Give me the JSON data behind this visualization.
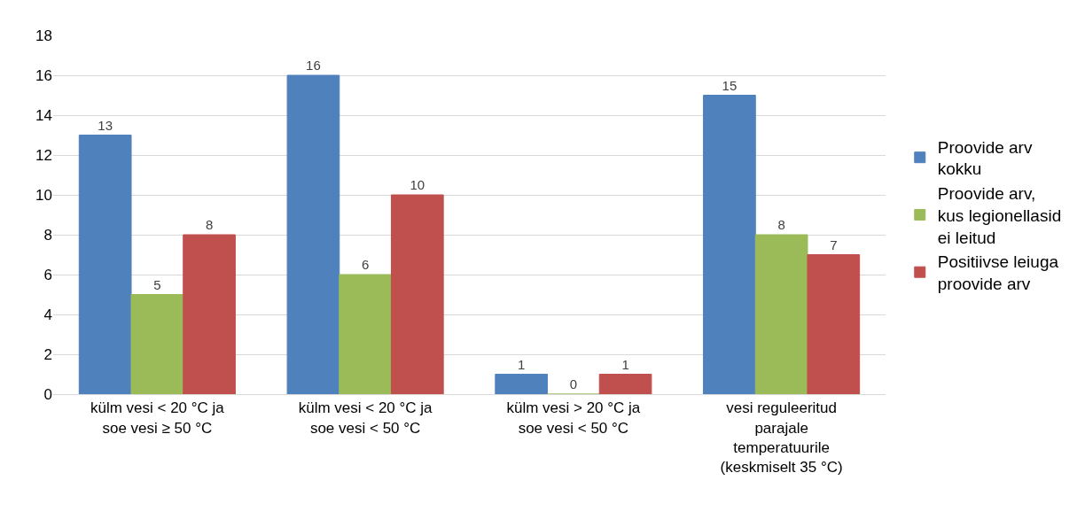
{
  "chart_data": {
    "type": "bar",
    "categories": [
      "külm vesi < 20 °C ja\nsoe vesi ≥ 50 °C",
      "külm vesi < 20 °C ja\nsoe vesi < 50 °C",
      "külm vesi > 20 °C ja\nsoe vesi < 50 °C",
      "vesi reguleeritud\nparajale\ntemperatuurile\n(keskmiselt 35 °C)"
    ],
    "series": [
      {
        "name": "Proovide arv\nkokku",
        "color": "#4f81bd",
        "values": [
          13,
          16,
          1,
          15
        ]
      },
      {
        "name": "Proovide arv,\nkus legionellasid\nei leitud",
        "color": "#9bbb59",
        "values": [
          5,
          6,
          0,
          8
        ]
      },
      {
        "name": "Positiivse leiuga\nproovide arv",
        "color": "#c0504d",
        "values": [
          8,
          10,
          1,
          7
        ]
      }
    ],
    "ylim": [
      0,
      18
    ],
    "yticks": [
      0,
      2,
      4,
      6,
      8,
      10,
      12,
      14,
      16,
      18
    ],
    "grid": "y",
    "legend": "right",
    "data_labels": true
  }
}
